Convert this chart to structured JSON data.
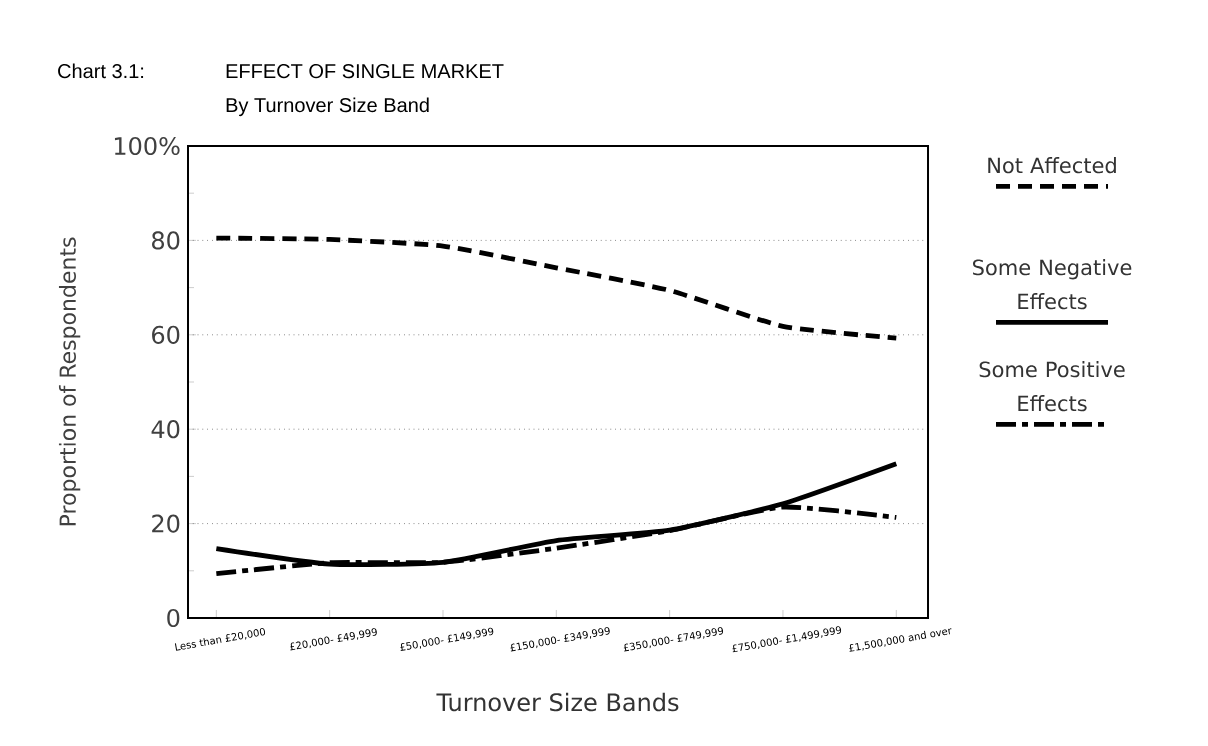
{
  "chart_data": {
    "type": "line",
    "title": "EFFECT OF SINGLE MARKET",
    "subtitle": "By Turnover Size Band",
    "annotations": [
      "Chart 3.1:"
    ],
    "xlabel": "Turnover Size Bands",
    "ylabel": "Proportion of Respondents",
    "categories": [
      "Less than £20,000",
      "£20,000- £49,999",
      "£50,000- £149,999",
      "£150,000- £349,999",
      "£350,000- £749,999",
      "£750,000- £1,499,999",
      "£1,500,000 and over"
    ],
    "series": [
      {
        "name": "Not Affected",
        "color": "#000000",
        "line_style": "dashed",
        "values": [
          80.5,
          80.2,
          78.8,
          74.2,
          69.4,
          61.8,
          59.3
        ]
      },
      {
        "name": "Some Negative Effects",
        "color": "#000000",
        "line_style": "solid",
        "values": [
          14.7,
          11.4,
          11.8,
          16.4,
          18.6,
          24.2,
          32.7
        ]
      },
      {
        "name": "Some Positive Effects",
        "color": "#000000",
        "line_style": "dashdot",
        "values": [
          9.4,
          11.7,
          11.8,
          14.8,
          18.5,
          23.5,
          21.3
        ]
      }
    ],
    "ylim": [
      0,
      100
    ],
    "yticks": [
      0,
      20,
      40,
      60,
      80,
      {
        "value": 100,
        "label": "100%"
      }
    ],
    "grid": "y",
    "legend": "right",
    "marker": "none"
  }
}
